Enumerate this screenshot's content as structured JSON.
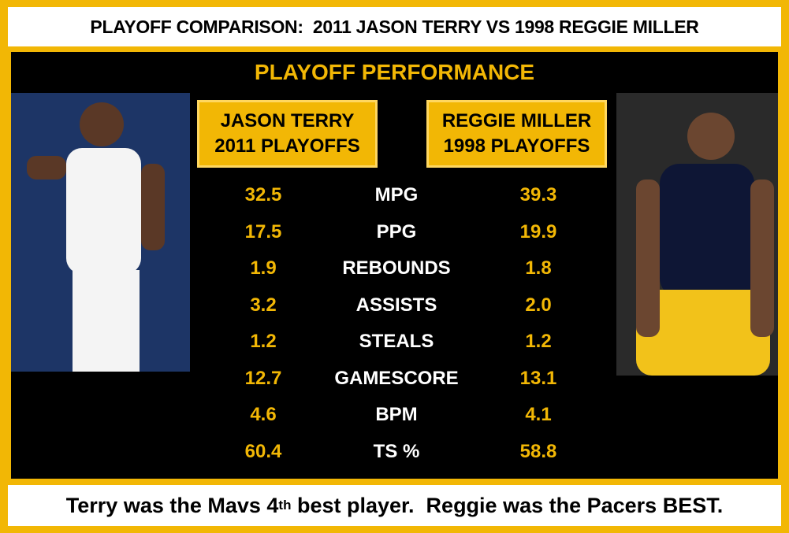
{
  "header": {
    "title": "PLAYOFF COMPARISON:  2011 JASON TERRY VS 1998 REGGIE MILLER"
  },
  "section_title": "PLAYOFF PERFORMANCE",
  "players": [
    {
      "name": "JASON TERRY",
      "season": "2011 PLAYOFFS"
    },
    {
      "name": "REGGIE MILLER",
      "season": "1998 PLAYOFFS"
    }
  ],
  "stats": [
    {
      "label": "MPG",
      "left": "32.5",
      "right": "39.3"
    },
    {
      "label": "PPG",
      "left": "17.5",
      "right": "19.9"
    },
    {
      "label": "REBOUNDS",
      "left": "1.9",
      "right": "1.8"
    },
    {
      "label": "ASSISTS",
      "left": "3.2",
      "right": "2.0"
    },
    {
      "label": "STEALS",
      "left": "1.2",
      "right": "1.2"
    },
    {
      "label": "GAMESCORE",
      "left": "12.7",
      "right": "13.1"
    },
    {
      "label": "BPM",
      "left": "4.6",
      "right": "4.1"
    },
    {
      "label": "TS %",
      "left": "60.4",
      "right": "58.8"
    }
  ],
  "footer": {
    "before": "Terry was the Mavs 4",
    "sup": "th",
    "after": " best player.  Reggie was the Pacers BEST."
  }
}
